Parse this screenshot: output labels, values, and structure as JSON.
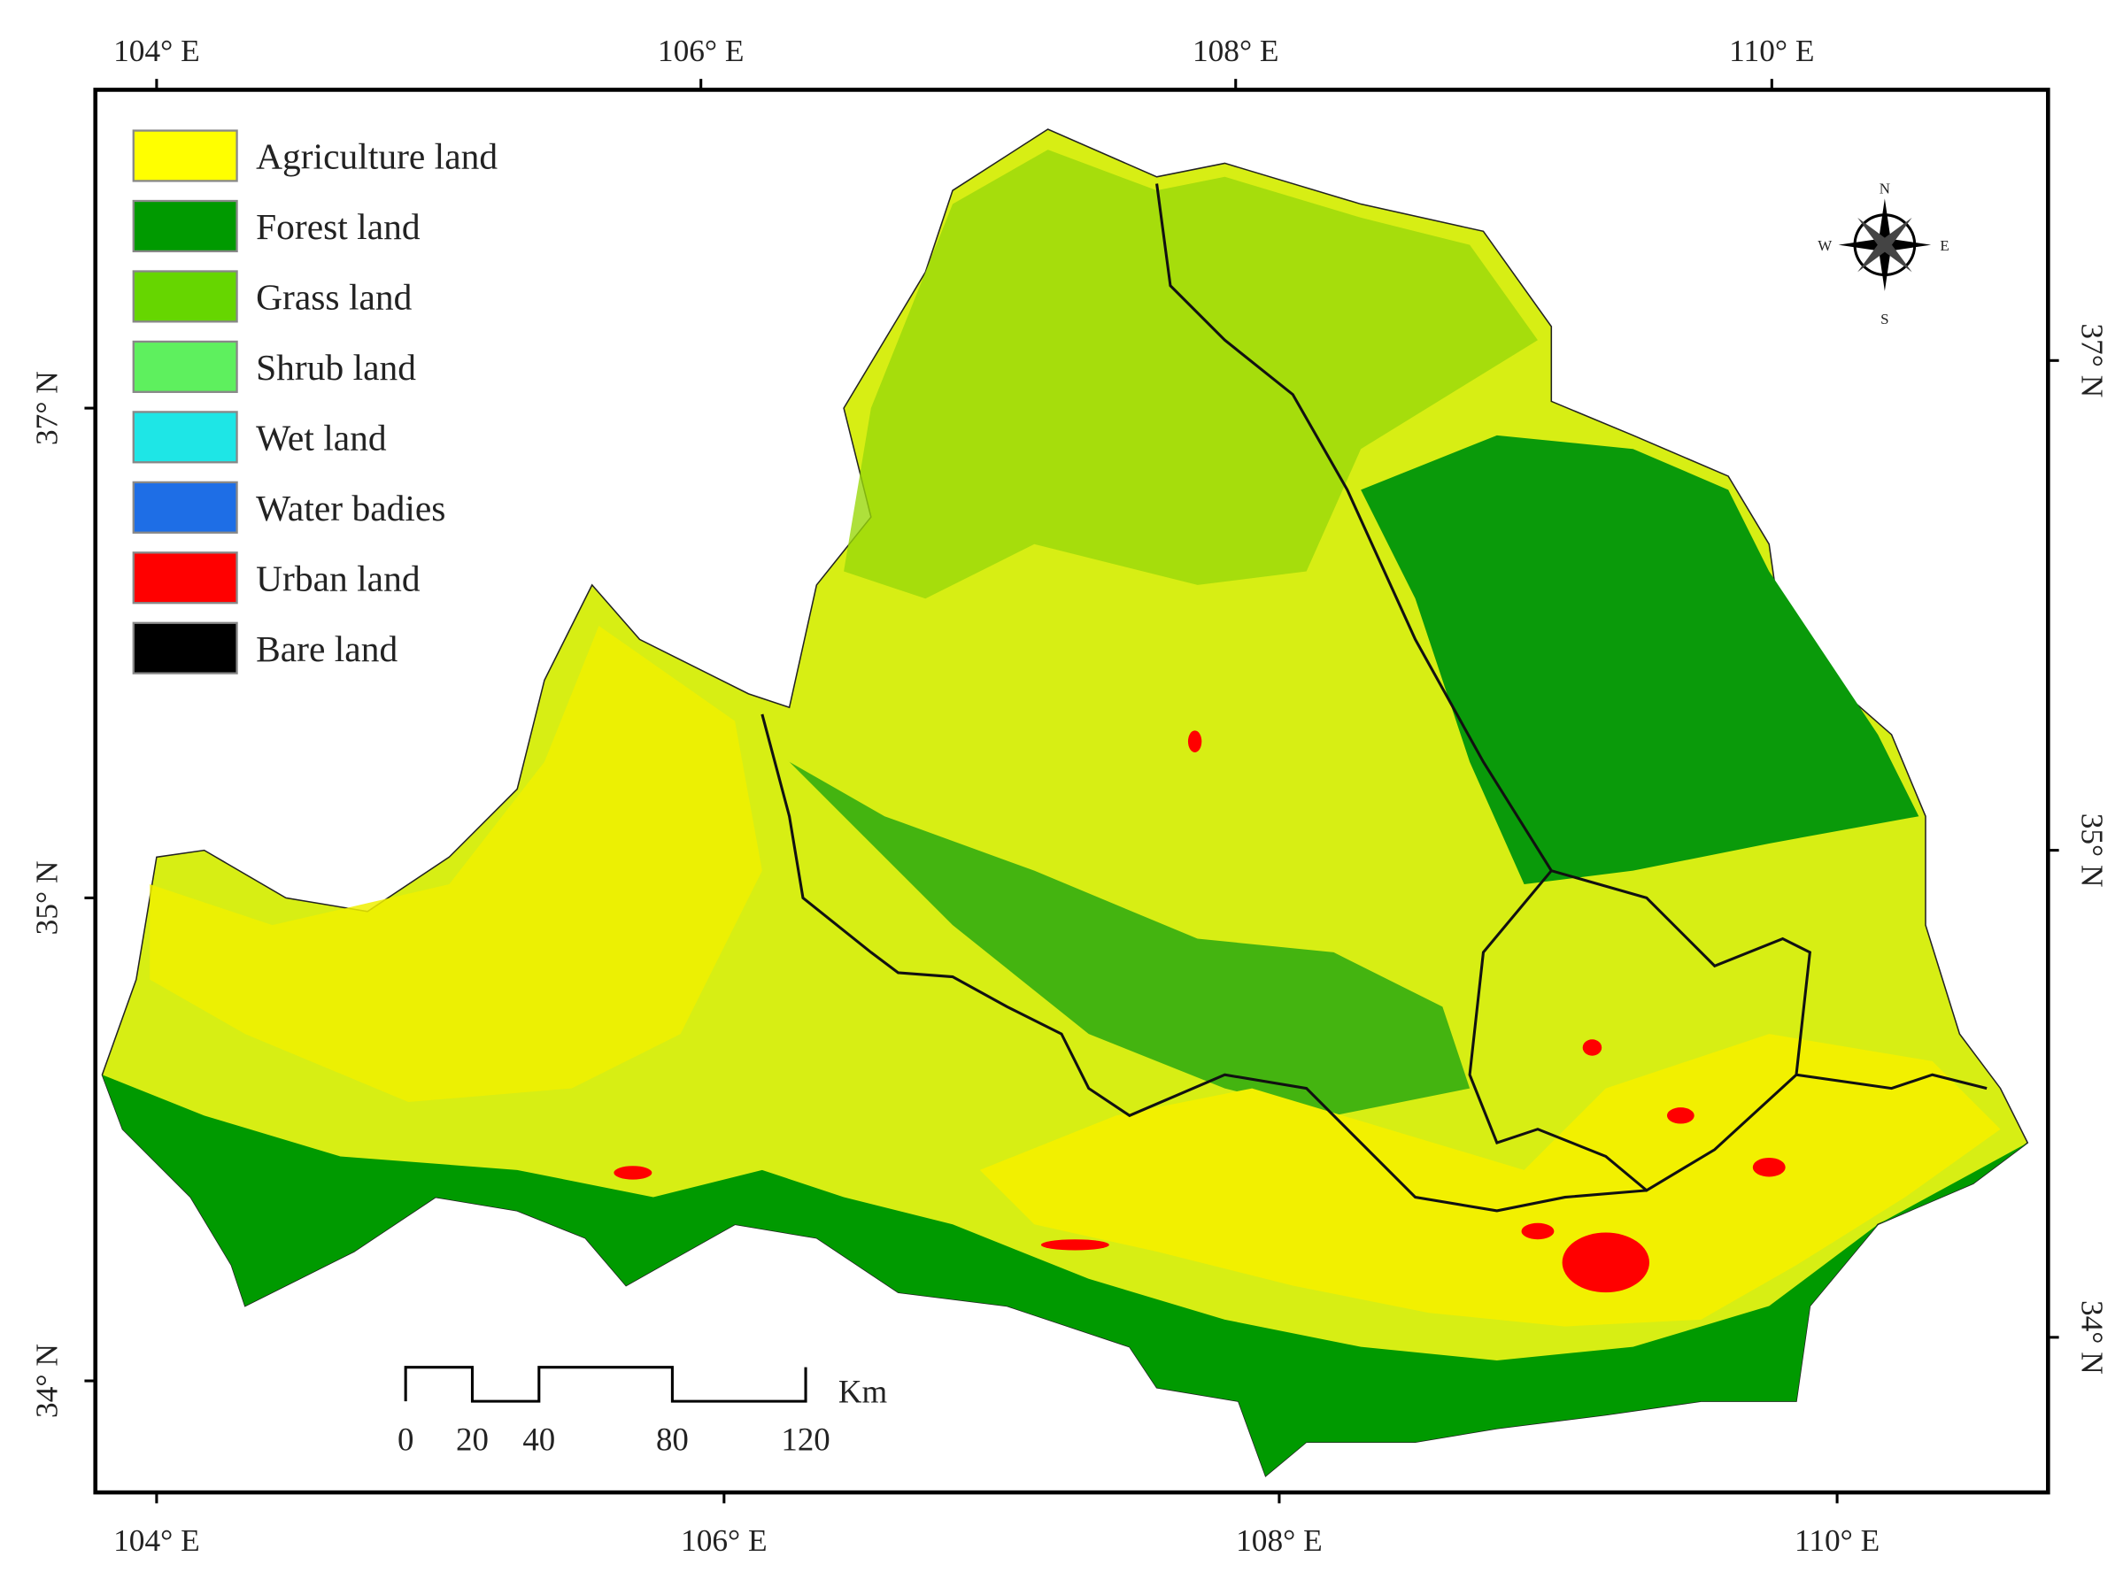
{
  "axes": {
    "top": [
      "104° E",
      "106° E",
      "108° E",
      "110° E"
    ],
    "bottom": [
      "104° E",
      "106° E",
      "108° E",
      "110° E"
    ],
    "left": [
      "37° N",
      "35° N",
      "34° N"
    ],
    "right": [
      "37° N",
      "35° N",
      "34° N"
    ]
  },
  "legend": [
    {
      "label": "Agriculture land",
      "color": "#ffff00"
    },
    {
      "label": "Forest land",
      "color": "#009a00"
    },
    {
      "label": "Grass land",
      "color": "#66d600"
    },
    {
      "label": "Shrub land",
      "color": "#5ef05e"
    },
    {
      "label": "Wet land",
      "color": "#1ee6e6"
    },
    {
      "label": "Water badies",
      "color": "#1e6ee6"
    },
    {
      "label": "Urban land",
      "color": "#ff0000"
    },
    {
      "label": "Bare land",
      "color": "#000000"
    }
  ],
  "compass": {
    "n": "N",
    "e": "E",
    "s": "S",
    "w": "W"
  },
  "scale_bar": {
    "ticks": [
      0,
      20,
      40,
      80,
      120
    ],
    "unit": "Km"
  }
}
